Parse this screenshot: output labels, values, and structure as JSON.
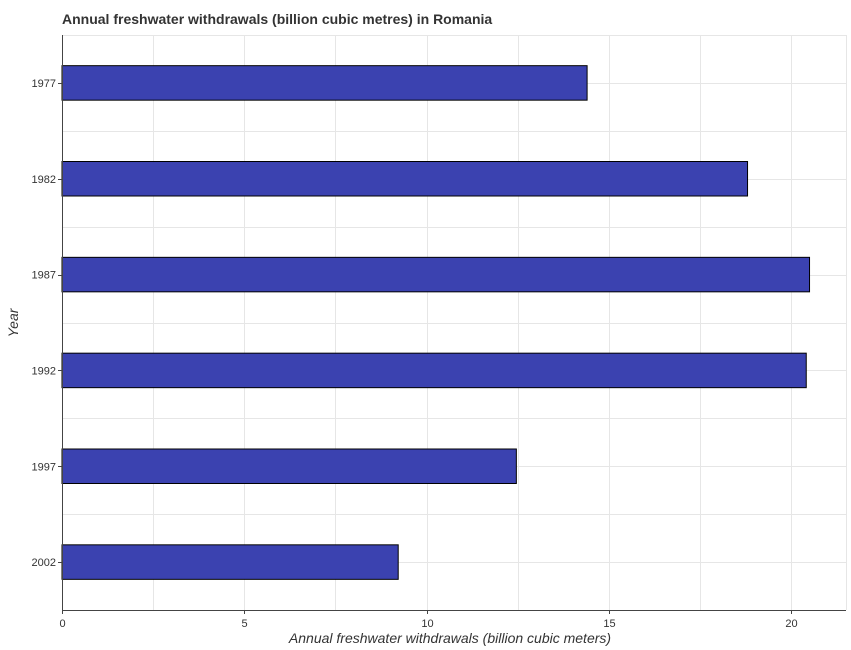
{
  "chart_data": {
    "type": "bar",
    "orientation": "horizontal",
    "title": "Annual freshwater withdrawals (billion cubic metres) in Romania",
    "xlabel": "Annual freshwater withdrawals (billion cubic meters)",
    "ylabel": "Year",
    "categories": [
      "1977",
      "1982",
      "1987",
      "1992",
      "1997",
      "2002"
    ],
    "values": [
      14.4,
      18.8,
      20.5,
      20.41,
      12.46,
      9.22
    ],
    "xlim": [
      0,
      21.5
    ],
    "xticks": [
      0,
      5,
      10,
      15,
      20
    ],
    "xtick_labels": [
      "0",
      "5",
      "10",
      "15",
      "20"
    ],
    "grid": true,
    "bar_color": "#3b42b0"
  }
}
